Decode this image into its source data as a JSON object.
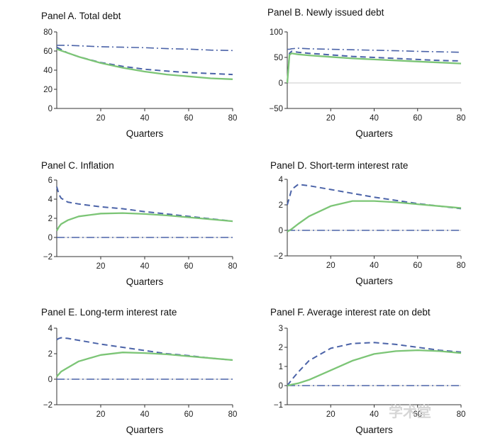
{
  "colors": {
    "green_series": "#7cc576",
    "dashed_series": "#4b63a8",
    "dashdot_series": "#4b63a8",
    "axis": "#333333",
    "zero_line": "#c8c8c8",
    "watermark": "#d6d6d6"
  },
  "watermark_text": "学术堂",
  "chart_data": [
    {
      "type": "line",
      "title": "Panel A. Total debt",
      "xlabel": "Quarters",
      "ylabel": "",
      "xlim": [
        0,
        80
      ],
      "ylim": [
        0,
        80
      ],
      "xticks": [
        "20",
        "40",
        "60",
        "80"
      ],
      "yticks": [
        "0",
        "20",
        "40",
        "60",
        "80"
      ],
      "x": [
        0,
        5,
        10,
        20,
        30,
        40,
        50,
        60,
        70,
        80
      ],
      "series": [
        {
          "style": "solid",
          "values": [
            62,
            58,
            54,
            47.5,
            42.5,
            38.5,
            35.5,
            33.5,
            31.5,
            30.5
          ]
        },
        {
          "style": "dashed",
          "values": [
            64,
            58,
            54,
            48,
            44,
            41,
            39,
            37.5,
            36.5,
            35.5
          ]
        },
        {
          "style": "dashdot",
          "values": [
            66,
            66,
            65.5,
            64.5,
            64,
            63.5,
            62.5,
            62,
            61,
            60.5
          ]
        }
      ]
    },
    {
      "type": "line",
      "title": "Panel B. Newly issued debt",
      "xlabel": "Quarters",
      "ylabel": "",
      "xlim": [
        0,
        80
      ],
      "ylim": [
        -50,
        100
      ],
      "xticks": [
        "20",
        "40",
        "60",
        "80"
      ],
      "yticks": [
        "−50",
        "0",
        "50",
        "100"
      ],
      "x": [
        0,
        1,
        2,
        5,
        10,
        20,
        30,
        40,
        50,
        60,
        70,
        80
      ],
      "series": [
        {
          "style": "solid",
          "values": [
            0,
            55,
            58,
            56,
            54,
            51,
            48,
            46,
            44,
            42,
            40,
            38
          ]
        },
        {
          "style": "dashed",
          "values": [
            0,
            58,
            62,
            60,
            58,
            55,
            52,
            50,
            48,
            46,
            44,
            43
          ]
        },
        {
          "style": "dashdot",
          "values": [
            66,
            66,
            67,
            68,
            67,
            66,
            65,
            64,
            63,
            62,
            61,
            60
          ]
        }
      ]
    },
    {
      "type": "line",
      "title": "Panel C. Inflation",
      "xlabel": "Quarters",
      "ylabel": "",
      "xlim": [
        0,
        80
      ],
      "ylim": [
        -2,
        6
      ],
      "xticks": [
        "20",
        "40",
        "60",
        "80"
      ],
      "yticks": [
        "−2",
        "0",
        "2",
        "4",
        "6"
      ],
      "x": [
        0,
        1,
        2,
        5,
        10,
        20,
        30,
        40,
        50,
        60,
        70,
        80
      ],
      "series": [
        {
          "style": "solid",
          "values": [
            0.7,
            1.1,
            1.4,
            1.8,
            2.2,
            2.5,
            2.55,
            2.45,
            2.3,
            2.1,
            1.9,
            1.7
          ]
        },
        {
          "style": "dashed",
          "values": [
            5.3,
            4.5,
            4.1,
            3.7,
            3.5,
            3.2,
            3.0,
            2.7,
            2.45,
            2.2,
            1.95,
            1.7
          ]
        },
        {
          "style": "dashdot",
          "values": [
            0,
            0,
            0,
            0,
            0,
            0,
            0,
            0,
            0,
            0,
            0,
            0
          ]
        }
      ]
    },
    {
      "type": "line",
      "title": "Panel D. Short-term interest rate",
      "xlabel": "Quarters",
      "ylabel": "",
      "xlim": [
        0,
        80
      ],
      "ylim": [
        -2,
        4
      ],
      "xticks": [
        "20",
        "40",
        "60",
        "80"
      ],
      "yticks": [
        "−2",
        "0",
        "2",
        "4"
      ],
      "x": [
        0,
        1,
        2,
        5,
        10,
        20,
        30,
        40,
        50,
        60,
        70,
        80
      ],
      "series": [
        {
          "style": "solid",
          "values": [
            -0.1,
            0.0,
            0.1,
            0.5,
            1.1,
            1.9,
            2.3,
            2.3,
            2.2,
            2.05,
            1.9,
            1.75
          ]
        },
        {
          "style": "dashed",
          "values": [
            2.0,
            2.6,
            3.2,
            3.6,
            3.5,
            3.2,
            2.9,
            2.6,
            2.35,
            2.1,
            1.9,
            1.7
          ]
        },
        {
          "style": "dashdot",
          "values": [
            0,
            0,
            0,
            0,
            0,
            0,
            0,
            0,
            0,
            0,
            0,
            0
          ]
        }
      ]
    },
    {
      "type": "line",
      "title": "Panel E. Long-term interest rate",
      "xlabel": "Quarters",
      "ylabel": "",
      "xlim": [
        0,
        80
      ],
      "ylim": [
        -2,
        4
      ],
      "xticks": [
        "20",
        "40",
        "60",
        "80"
      ],
      "yticks": [
        "−2",
        "0",
        "2",
        "4"
      ],
      "x": [
        0,
        1,
        2,
        5,
        10,
        20,
        30,
        40,
        50,
        60,
        70,
        80
      ],
      "series": [
        {
          "style": "solid",
          "values": [
            0.2,
            0.4,
            0.6,
            0.9,
            1.4,
            1.9,
            2.1,
            2.05,
            1.95,
            1.8,
            1.65,
            1.5
          ]
        },
        {
          "style": "dashed",
          "values": [
            3.1,
            3.2,
            3.25,
            3.2,
            3.05,
            2.75,
            2.5,
            2.25,
            2.0,
            1.85,
            1.65,
            1.5
          ]
        },
        {
          "style": "dashdot",
          "values": [
            0,
            0,
            0,
            0,
            0,
            0,
            0,
            0,
            0,
            0,
            0,
            0
          ]
        }
      ]
    },
    {
      "type": "line",
      "title": "Panel F. Average interest rate on debt",
      "xlabel": "Quarters",
      "ylabel": "",
      "xlim": [
        0,
        80
      ],
      "ylim": [
        -1,
        3
      ],
      "xticks": [
        "20",
        "40",
        "60",
        "80"
      ],
      "yticks": [
        "−1",
        "0",
        "1",
        "2",
        "3"
      ],
      "x": [
        0,
        1,
        2,
        5,
        10,
        20,
        30,
        40,
        50,
        60,
        70,
        80
      ],
      "series": [
        {
          "style": "solid",
          "values": [
            0.0,
            0.02,
            0.05,
            0.12,
            0.3,
            0.8,
            1.3,
            1.65,
            1.8,
            1.85,
            1.8,
            1.7
          ]
        },
        {
          "style": "dashed",
          "values": [
            0.0,
            0.15,
            0.3,
            0.7,
            1.3,
            1.95,
            2.2,
            2.25,
            2.15,
            2.0,
            1.85,
            1.75
          ]
        },
        {
          "style": "dashdot",
          "values": [
            0,
            0,
            0,
            0,
            0,
            0,
            0,
            0,
            0,
            0,
            0,
            0
          ]
        }
      ]
    }
  ]
}
